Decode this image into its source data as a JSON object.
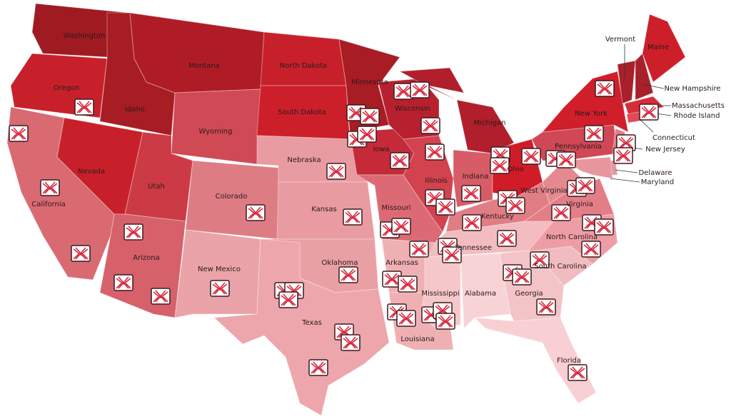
{
  "states": [
    {
      "label": "Washington",
      "color": "#a01a22"
    },
    {
      "label": "Oregon",
      "color": "#c8202a"
    },
    {
      "label": "California",
      "color": "#d96a72"
    },
    {
      "label": "Idaho",
      "color": "#a81c24"
    },
    {
      "label": "Nevada",
      "color": "#c8202a"
    },
    {
      "label": "Montana",
      "color": "#b01c26"
    },
    {
      "label": "Wyoming",
      "color": "#cf4a55"
    },
    {
      "label": "Utah",
      "color": "#cc3a45"
    },
    {
      "label": "Arizona",
      "color": "#d6616b"
    },
    {
      "label": "Colorado",
      "color": "#de7c84"
    },
    {
      "label": "New Mexico",
      "color": "#eaa3a8"
    },
    {
      "label": "North Dakota",
      "color": "#c8202a"
    },
    {
      "label": "South Dakota",
      "color": "#cc1f2a"
    },
    {
      "label": "Nebraska",
      "color": "#e89ba1"
    },
    {
      "label": "Kansas",
      "color": "#e89ba1"
    },
    {
      "label": "Oklahoma",
      "color": "#e9a0a5"
    },
    {
      "label": "Texas",
      "color": "#eda6ab"
    },
    {
      "label": "Minnesota",
      "color": "#a81c24"
    },
    {
      "label": "Iowa",
      "color": "#c42a38"
    },
    {
      "label": "Missouri",
      "color": "#db6a74"
    },
    {
      "label": "Arkansas",
      "color": "#efb0b4"
    },
    {
      "label": "Louisiana",
      "color": "#efb0b4"
    },
    {
      "label": "Wisconsin",
      "color": "#b82030"
    },
    {
      "label": "Illinois",
      "color": "#d2424f"
    },
    {
      "label": "Michigan",
      "color": "#b01f2b"
    },
    {
      "label": "Indiana",
      "color": "#d75c67"
    },
    {
      "label": "Ohio",
      "color": "#d01c28"
    },
    {
      "label": "Kentucky",
      "color": "#e07d85"
    },
    {
      "label": "Tennessee",
      "color": "#f2bcc0"
    },
    {
      "label": "Mississippi",
      "color": "#f5c7ca"
    },
    {
      "label": "Alabama",
      "color": "#f8d3d5"
    },
    {
      "label": "Georgia",
      "color": "#f3c4c7"
    },
    {
      "label": "Florida",
      "color": "#f8d0d3"
    },
    {
      "label": "South Carolina",
      "color": "#f1bcc0"
    },
    {
      "label": "North Carolina",
      "color": "#ee9da4"
    },
    {
      "label": "Virginia",
      "color": "#e37e87"
    },
    {
      "label": "West Virginia",
      "color": "#e58990"
    },
    {
      "label": "Pennsylvania",
      "color": "#d04755"
    },
    {
      "label": "New York",
      "color": "#d01e2b"
    },
    {
      "label": "Vermont",
      "color": "#a8202a"
    },
    {
      "label": "New Hampshire",
      "color": "#a8202a"
    },
    {
      "label": "Maine",
      "color": "#cc1f2a"
    },
    {
      "label": "Massachusetts",
      "color": "#d72c38"
    },
    {
      "label": "Rhode Island",
      "color": "#f06d77"
    },
    {
      "label": "Connecticut",
      "color": "#e04a55"
    },
    {
      "label": "New Jersey",
      "color": "#e57d86"
    },
    {
      "label": "Delaware",
      "color": "#e8969d"
    },
    {
      "label": "Maryland",
      "color": "#e8969d"
    }
  ]
}
